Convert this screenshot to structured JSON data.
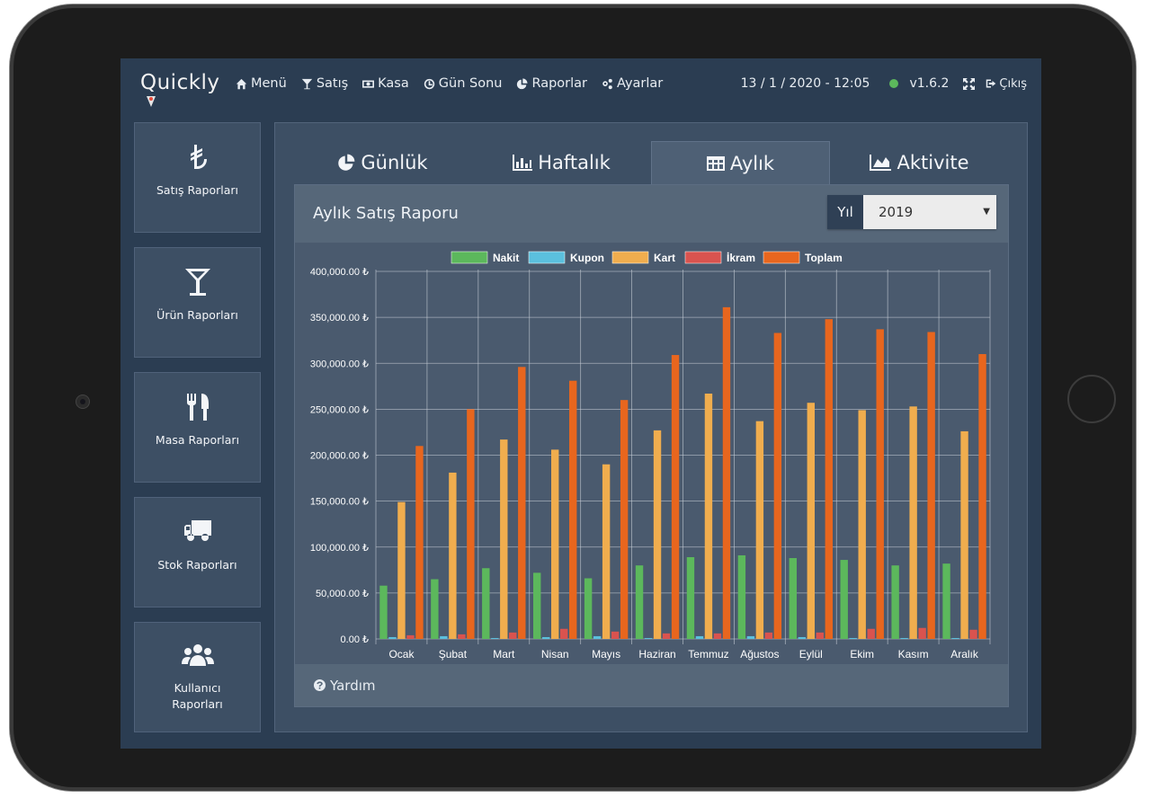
{
  "app": {
    "logo": "Quickly",
    "nav": [
      {
        "label": "Menü",
        "icon": "home-icon"
      },
      {
        "label": "Satış",
        "icon": "cocktail-icon"
      },
      {
        "label": "Kasa",
        "icon": "money-icon"
      },
      {
        "label": "Gün Sonu",
        "icon": "clock-icon"
      },
      {
        "label": "Raporlar",
        "icon": "pie-chart-icon"
      },
      {
        "label": "Ayarlar",
        "icon": "gears-icon"
      }
    ],
    "datetime": "13 / 1 / 2020 - 12:05",
    "version": "v1.6.2",
    "logout": "Çıkış",
    "status_color": "#5cb85c"
  },
  "sidebar": [
    {
      "label": "Satış Raporları",
      "icon": "lira-icon"
    },
    {
      "label": "Ürün Raporları",
      "icon": "cocktail-icon"
    },
    {
      "label": "Masa Raporları",
      "icon": "cutlery-icon"
    },
    {
      "label": "Stok Raporları",
      "icon": "truck-icon"
    },
    {
      "label": "Kullanıcı Raporları",
      "label_lines": [
        "Kullanıcı",
        "Raporları"
      ],
      "icon": "users-icon"
    }
  ],
  "tabs": [
    {
      "label": "Günlük",
      "icon": "pie-chart-icon",
      "active": false
    },
    {
      "label": "Haftalık",
      "icon": "bar-chart-icon",
      "active": false
    },
    {
      "label": "Aylık",
      "icon": "table-icon",
      "active": true
    },
    {
      "label": "Aktivite",
      "icon": "area-chart-icon",
      "active": false
    }
  ],
  "report": {
    "title": "Aylık Satış Raporu",
    "year_label": "Yıl",
    "year_value": "2019",
    "help": "Yardım"
  },
  "chart_data": {
    "type": "bar",
    "categories": [
      "Ocak",
      "Şubat",
      "Mart",
      "Nisan",
      "Mayıs",
      "Haziran",
      "Temmuz",
      "Ağustos",
      "Eylül",
      "Ekim",
      "Kasım",
      "Aralık"
    ],
    "series": [
      {
        "name": "Nakit",
        "color": "#5cb85c",
        "values": [
          58000,
          65000,
          77000,
          72000,
          66000,
          80000,
          89000,
          91000,
          88000,
          86000,
          80000,
          82000
        ]
      },
      {
        "name": "Kupon",
        "color": "#5bc0de",
        "values": [
          2000,
          3000,
          1000,
          2000,
          3000,
          1000,
          3000,
          3000,
          2000,
          1000,
          1000,
          1000
        ]
      },
      {
        "name": "Kart",
        "color": "#f0ad4e",
        "values": [
          149000,
          181000,
          217000,
          206000,
          190000,
          227000,
          267000,
          237000,
          257000,
          249000,
          253000,
          226000
        ]
      },
      {
        "name": "İkram",
        "color": "#d9534f",
        "values": [
          4000,
          5000,
          7000,
          11000,
          8000,
          6000,
          6000,
          7000,
          7000,
          11000,
          12000,
          10000
        ]
      },
      {
        "name": "Toplam",
        "color": "#e8661e",
        "values": [
          210000,
          250000,
          296000,
          281000,
          260000,
          309000,
          361000,
          333000,
          348000,
          337000,
          334000,
          310000
        ]
      }
    ],
    "ylim": [
      0,
      400000
    ],
    "yticks": [
      0,
      50000,
      100000,
      150000,
      200000,
      250000,
      300000,
      350000,
      400000
    ],
    "ytick_labels": [
      "0.00 ₺",
      "50,000.00 ₺",
      "100,000.00 ₺",
      "150,000.00 ₺",
      "200,000.00 ₺",
      "250,000.00 ₺",
      "300,000.00 ₺",
      "350,000.00 ₺",
      "400,000.00 ₺"
    ],
    "legend_position": "top-center",
    "grid": true
  }
}
